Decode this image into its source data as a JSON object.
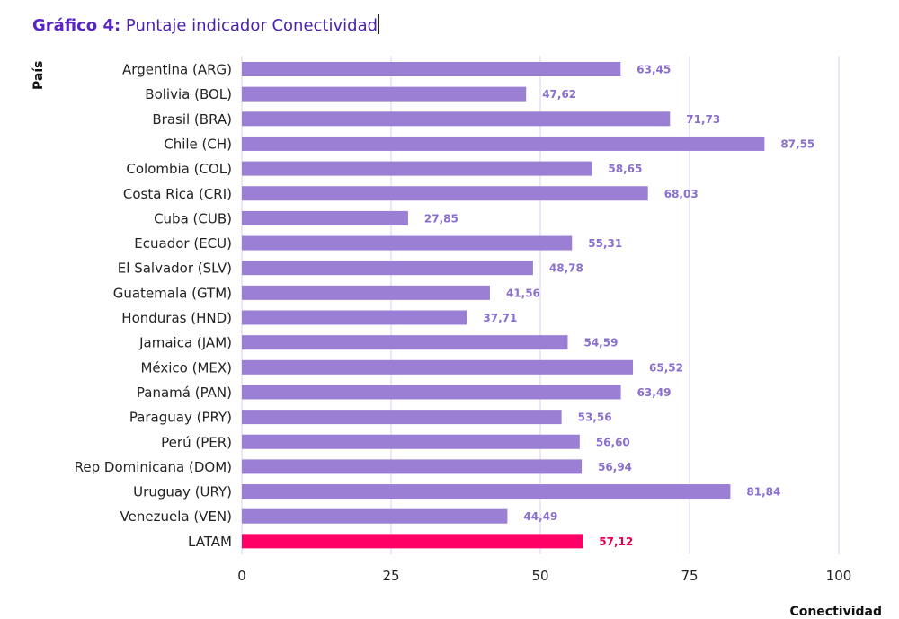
{
  "title": {
    "label": "Gráfico 4:",
    "text": "Puntaje indicador Conectividad"
  },
  "colors": {
    "bar": "#9b7fd4",
    "highlight_bar": "#ff0066",
    "value_label": "#8a6fcf",
    "highlight_label": "#e8004f",
    "grid": "#d9d0f0"
  },
  "chart_data": {
    "type": "bar",
    "orientation": "horizontal",
    "xlabel": "Conectividad",
    "ylabel": "País",
    "xlim": [
      0,
      100
    ],
    "xticks": [
      0,
      25,
      50,
      75,
      100
    ],
    "grid": true,
    "categories": [
      "Argentina (ARG)",
      "Bolivia (BOL)",
      "Brasil (BRA)",
      "Chile (CH)",
      "Colombia (COL)",
      "Costa Rica (CRI)",
      "Cuba (CUB)",
      "Ecuador (ECU)",
      "El Salvador (SLV)",
      "Guatemala (GTM)",
      "Honduras (HND)",
      "Jamaica (JAM)",
      "México (MEX)",
      "Panamá (PAN)",
      "Paraguay (PRY)",
      "Perú (PER)",
      "Rep Dominicana (DOM)",
      "Uruguay (URY)",
      "Venezuela (VEN)",
      "LATAM"
    ],
    "values": [
      63.45,
      47.62,
      71.73,
      87.55,
      58.65,
      68.03,
      27.85,
      55.31,
      48.78,
      41.56,
      37.71,
      54.59,
      65.52,
      63.49,
      53.56,
      56.6,
      56.94,
      81.84,
      44.49,
      57.12
    ],
    "value_labels": [
      "63,45",
      "47,62",
      "71,73",
      "87,55",
      "58,65",
      "68,03",
      "27,85",
      "55,31",
      "48,78",
      "41,56",
      "37,71",
      "54,59",
      "65,52",
      "63,49",
      "53,56",
      "56,60",
      "56,94",
      "81,84",
      "44,49",
      "57,12"
    ],
    "highlight": "LATAM"
  }
}
